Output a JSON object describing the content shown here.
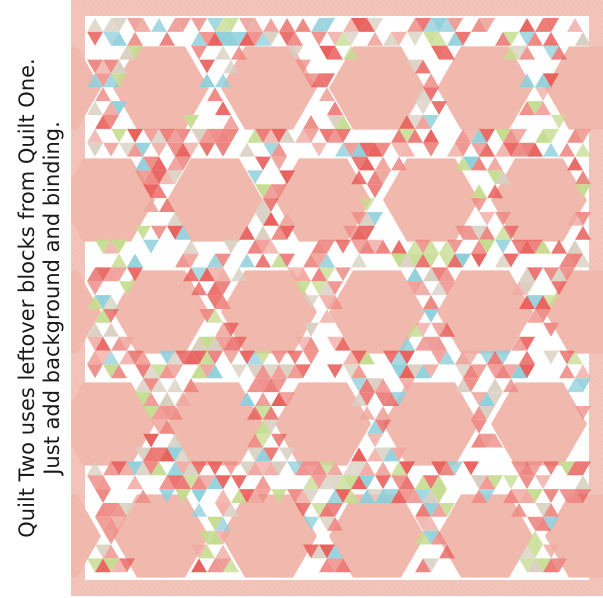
{
  "caption": {
    "line1": "Quilt Two uses leftover blocks from Quilt One.",
    "line2": "Just add background and binding."
  },
  "quilt": {
    "colors": {
      "border": "#f2c4ba",
      "border_dark": "#e9b0a4",
      "background": "#ffffff",
      "hexagon": "#f1b9ad",
      "red": "#e8605c",
      "pink": "#f0a9a1",
      "green": "#c5dc8f",
      "aqua": "#8fcfdb",
      "beige": "#d9cfc1",
      "floral": "#ee8a84"
    }
  }
}
